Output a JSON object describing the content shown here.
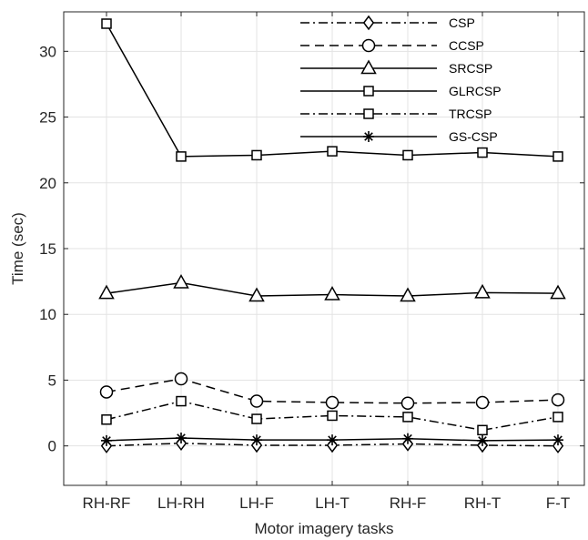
{
  "chart_data": {
    "type": "line",
    "title": "",
    "xlabel": "Motor imagery tasks",
    "ylabel": "Time (sec)",
    "categories": [
      "RH-RF",
      "LH-RH",
      "LH-F",
      "LH-T",
      "RH-F",
      "RH-T",
      "F-T"
    ],
    "ylim": [
      -3,
      33
    ],
    "yticks": [
      0,
      5,
      10,
      15,
      20,
      25,
      30
    ],
    "grid": true,
    "legend_position": "top-right",
    "series": [
      {
        "name": "CSP",
        "marker": "diamond",
        "dash": "dashdot",
        "values": [
          0.0,
          0.2,
          0.05,
          0.05,
          0.15,
          0.05,
          0.0
        ]
      },
      {
        "name": "CCSP",
        "marker": "circle",
        "dash": "dashed",
        "values": [
          4.1,
          5.1,
          3.4,
          3.3,
          3.25,
          3.3,
          3.5
        ]
      },
      {
        "name": "SRCSP",
        "marker": "triangle",
        "dash": "solid",
        "values": [
          11.6,
          12.4,
          11.4,
          11.5,
          11.4,
          11.65,
          11.6
        ]
      },
      {
        "name": "GLRCSP",
        "marker": "square",
        "dash": "solid",
        "values": [
          32.1,
          22.0,
          22.1,
          22.4,
          22.1,
          22.3,
          22.0
        ]
      },
      {
        "name": "TRCSP",
        "marker": "square",
        "dash": "dashdot",
        "values": [
          2.0,
          3.4,
          2.05,
          2.3,
          2.2,
          1.2,
          2.2
        ]
      },
      {
        "name": "GS-CSP",
        "marker": "asterisk",
        "dash": "solid",
        "values": [
          0.4,
          0.6,
          0.45,
          0.45,
          0.55,
          0.4,
          0.45
        ]
      }
    ],
    "colors": {
      "line": "#000000",
      "grid": "#e3e3e3",
      "axis": "#262626"
    }
  }
}
